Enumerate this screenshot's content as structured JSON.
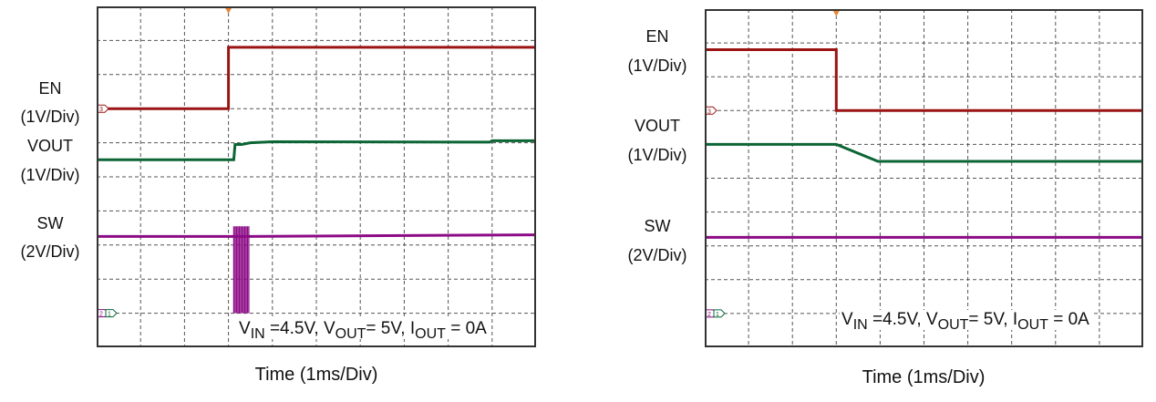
{
  "chart_data": [
    {
      "type": "line",
      "xlabel": "Time (1ms/Div)",
      "time_per_div": "1ms",
      "xlim_ms": [
        -3,
        7
      ],
      "grid": true,
      "trigger_marker_ms": 0,
      "channel_markers": {
        "en": "3",
        "sw": "2",
        "vout": "1"
      },
      "annotation": [
        "V",
        "IN",
        " =4.5V, V",
        "OUT",
        "= 5V, I",
        "OUT",
        " = 0A"
      ],
      "series": [
        {
          "name": "EN",
          "scale": "(1V/Div)",
          "color": "#9a1414",
          "points": [
            [
              -3,
              0
            ],
            [
              0,
              0
            ],
            [
              0,
              1.8
            ],
            [
              7,
              1.8
            ]
          ]
        },
        {
          "name": "VOUT",
          "scale": "(1V/Div)",
          "color": "#0b6534",
          "points": [
            [
              -3,
              4.5
            ],
            [
              0.12,
              4.5
            ],
            [
              0.15,
              4.95
            ],
            [
              0.3,
              4.95
            ],
            [
              0.5,
              5.0
            ],
            [
              1,
              5.03
            ],
            [
              5.95,
              5.02
            ],
            [
              6,
              5.06
            ],
            [
              7,
              5.06
            ]
          ]
        },
        {
          "name": "SW",
          "scale": "(2V/Div)",
          "color": "#8c0b86",
          "points": [
            [
              -3,
              4.5
            ],
            [
              0.12,
              4.5
            ],
            [
              0.47,
              4.5
            ],
            [
              7,
              4.6
            ]
          ],
          "burst": {
            "t_start": 0.12,
            "t_end": 0.47,
            "min": 0,
            "max": 5.1
          }
        }
      ]
    },
    {
      "type": "line",
      "xlabel": "Time (1ms/Div)",
      "time_per_div": "1ms",
      "xlim_ms": [
        -3,
        7
      ],
      "grid": true,
      "trigger_marker_ms": 0,
      "channel_markers": {
        "en": "3",
        "sw": "2",
        "vout": "1"
      },
      "annotation": [
        "V",
        "IN",
        " =4.5V, V",
        "OUT",
        "= 5V, I",
        "OUT",
        " = 0A"
      ],
      "series": [
        {
          "name": "EN",
          "scale": "(1V/Div)",
          "color": "#9a1414",
          "points": [
            [
              -3,
              1.8
            ],
            [
              0,
              1.8
            ],
            [
              0,
              0
            ],
            [
              7,
              0
            ]
          ]
        },
        {
          "name": "VOUT",
          "scale": "(1V/Div)",
          "color": "#0b6534",
          "points": [
            [
              -3,
              5.0
            ],
            [
              0,
              5.0
            ],
            [
              0.95,
              4.5
            ],
            [
              7,
              4.5
            ]
          ]
        },
        {
          "name": "SW",
          "scale": "(2V/Div)",
          "color": "#8c0b86",
          "points": [
            [
              -3,
              4.5
            ],
            [
              7,
              4.5
            ]
          ]
        }
      ]
    }
  ],
  "colors": {
    "trigger": "#e8883a",
    "grid": "#555555",
    "frame": "#333333"
  }
}
